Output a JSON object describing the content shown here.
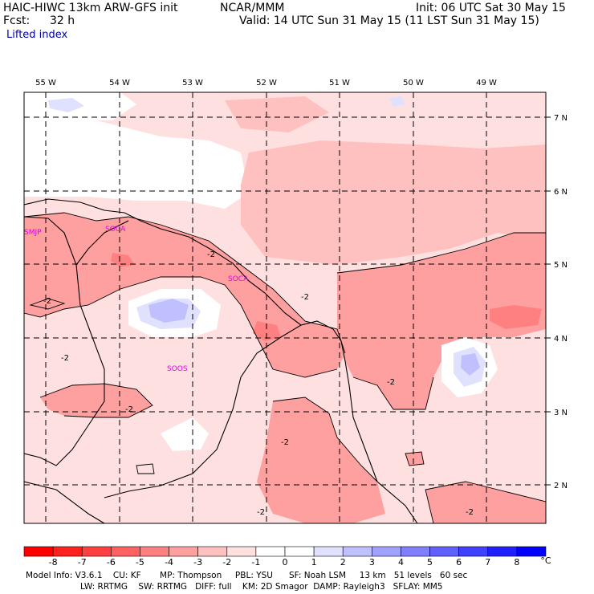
{
  "header": {
    "title_left": "HAIC-HIWC 13km ARW-GFS init",
    "title_center": "NCAR/MMM",
    "init": "Init: 06 UTC Sat 30 May 15",
    "fcst_label": "Fcst:",
    "fcst_value": "32 h",
    "valid": "Valid: 14 UTC Sun 31 May 15 (11 LST Sun 31 May 15)",
    "field": "Lifted index"
  },
  "map": {
    "lon_labels": [
      "55 W",
      "54 W",
      "53 W",
      "52 W",
      "51 W",
      "50 W",
      "49 W"
    ],
    "lat_labels": [
      "7 N",
      "6 N",
      "5 N",
      "4 N",
      "3 N",
      "2 N"
    ],
    "stations": [
      "SMJP",
      "SOCA",
      "SOCA",
      "SOOS"
    ],
    "contour_labels": [
      "-2",
      "-2",
      "-2",
      "-2",
      "-2",
      "-2",
      "-2",
      "-2",
      "-2"
    ]
  },
  "colorbar": {
    "ticks": [
      "-8",
      "-7",
      "-6",
      "-5",
      "-4",
      "-3",
      "-2",
      "-1",
      "0",
      "1",
      "2",
      "3",
      "4",
      "5",
      "6",
      "7",
      "8"
    ],
    "unit": "°C",
    "colors": [
      "#ff0000",
      "#ff2020",
      "#ff4040",
      "#ff6060",
      "#ff8080",
      "#ffa0a0",
      "#ffc0c0",
      "#ffe0e0",
      "#ffffff",
      "#ffffff",
      "#e0e0ff",
      "#c0c0ff",
      "#a0a0ff",
      "#8080ff",
      "#6060ff",
      "#4040ff",
      "#2020ff",
      "#0000ff"
    ]
  },
  "footer": {
    "line1": "Model Info: V3.6.1    CU: KF       MP: Thompson     PBL: YSU      SF: Noah LSM     13 km   51 levels   60 sec",
    "line2": "LW: RRTMG    SW: RRTMG   DIFF: full    KM: 2D Smagor  DAMP: Rayleigh3   SFLAY: MM5"
  }
}
